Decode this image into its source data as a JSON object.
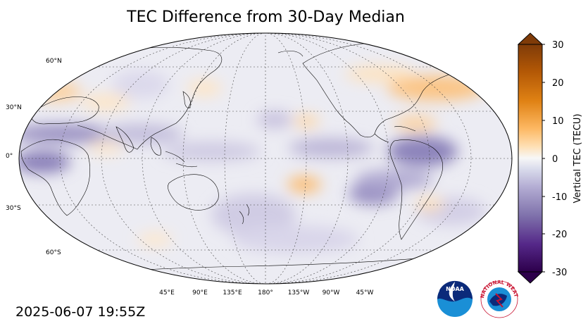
{
  "title": "TEC Difference from 30-Day Median",
  "timestamp": "2025-06-07 19:55Z",
  "colorbar": {
    "label": "Vertical TEC (TECU)",
    "ticks": [
      "30",
      "20",
      "10",
      "0",
      "-10",
      "-20",
      "-30"
    ],
    "range": [
      -30,
      30
    ],
    "high_color": "#7a3d07",
    "low_color": "#2d0a4f"
  },
  "latitude_labels": [
    "60°N",
    "30°N",
    "0°",
    "30°S",
    "60°S"
  ],
  "longitude_labels": [
    "45°E",
    "90°E",
    "135°E",
    "180°",
    "135°W",
    "90°W",
    "45°W"
  ],
  "logos": {
    "noaa": "NOAA",
    "nws": "NATIONAL WEATHER SERVICE"
  }
}
